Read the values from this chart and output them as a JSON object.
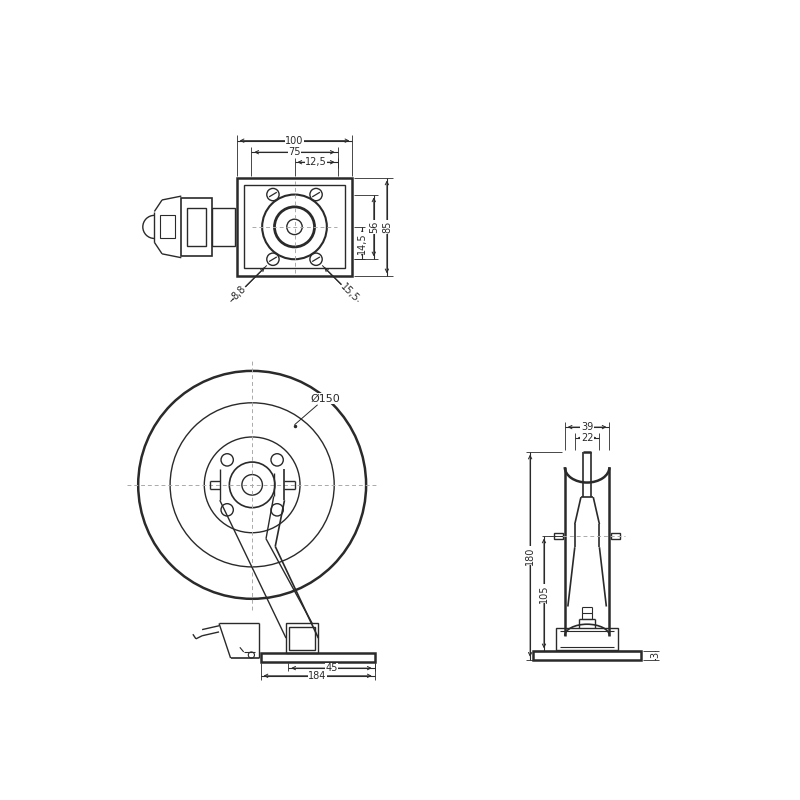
{
  "bg_color": "#ffffff",
  "lc": "#2a2a2a",
  "dc": "#2a2a2a",
  "fig_w": 8.0,
  "fig_h": 8.0,
  "dpi": 100
}
